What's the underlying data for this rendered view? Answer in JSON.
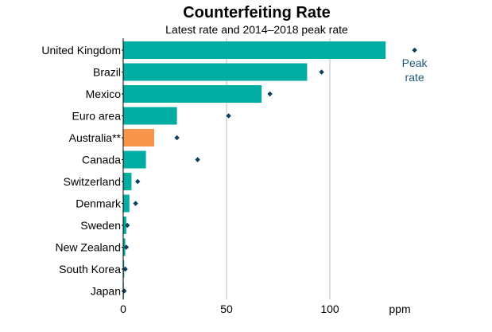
{
  "chart_data": {
    "type": "bar",
    "orientation": "horizontal",
    "title": "Counterfeiting Rate",
    "subtitle": "Latest rate and 2014–2018 peak rate",
    "xlabel": "ppm",
    "ylabel": "",
    "xlim": [
      0,
      135
    ],
    "xticks": [
      0,
      50,
      100
    ],
    "grid": true,
    "categories": [
      "United Kingdom",
      "Brazil",
      "Mexico",
      "Euro area",
      "Australia**",
      "Canada",
      "Switzerland",
      "Denmark",
      "Sweden",
      "New Zealand",
      "South Korea",
      "Japan"
    ],
    "series": [
      {
        "kind": "bar",
        "values": [
          127,
          89,
          67,
          26,
          15,
          11,
          4,
          3,
          1.5,
          1,
          0.5,
          0.2
        ]
      },
      {
        "kind": "marker",
        "values": [
          141,
          96,
          71,
          51,
          26,
          36,
          7,
          6,
          2,
          1.5,
          1,
          0.5
        ]
      }
    ],
    "annotations": [
      {
        "text": "Peak rate",
        "category": "United Kingdom"
      }
    ],
    "colors": {
      "bar": "#00ada0",
      "highlight_bar": "#f7964a",
      "highlight_category": "Australia**",
      "marker": "#0b3f5b",
      "annotation": "#1f5a7a",
      "grid": "#bdbdbd",
      "axis": "#000000"
    }
  }
}
